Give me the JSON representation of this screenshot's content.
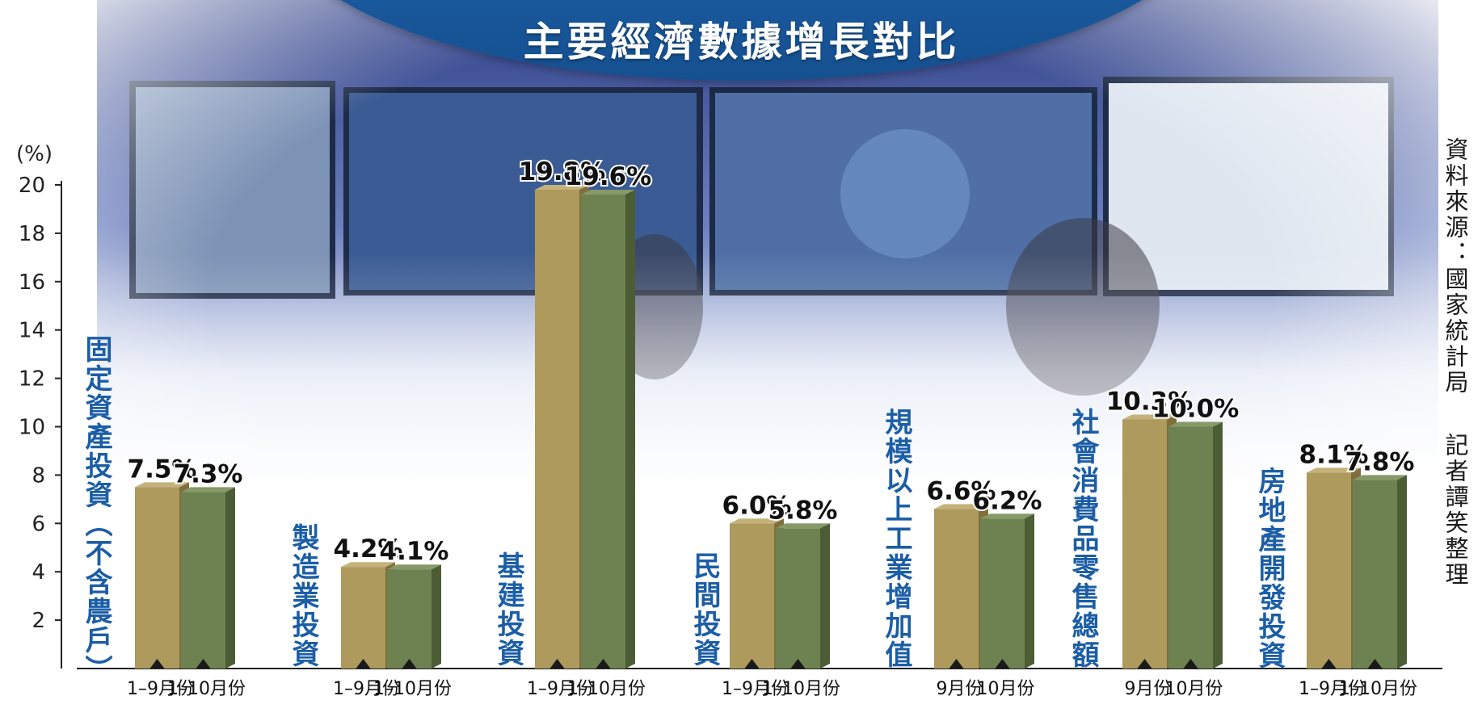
{
  "chart_data": {
    "type": "bar",
    "title": "主要經濟數據增長對比",
    "ylabel": "(%)",
    "ylim": [
      0,
      20
    ],
    "yticks": [
      2,
      4,
      6,
      8,
      10,
      12,
      14,
      16,
      18,
      20
    ],
    "grid": false,
    "bar_colors": [
      "#ad9a5c",
      "#6e8251"
    ],
    "groups": [
      {
        "label": "固定資產投資（不含農戶）",
        "categories": [
          "1–9月份",
          "1–10月份"
        ],
        "values": [
          7.5,
          7.3
        ],
        "value_labels": [
          "7.5%",
          "7.3%"
        ]
      },
      {
        "label": "製造業投資",
        "categories": [
          "1–9月份",
          "1–10月份"
        ],
        "values": [
          4.2,
          4.1
        ],
        "value_labels": [
          "4.2%",
          "4.1%"
        ]
      },
      {
        "label": "基建投資",
        "categories": [
          "1–9月份",
          "1–10月份"
        ],
        "values": [
          19.8,
          19.6
        ],
        "value_labels": [
          "19.8%",
          "19.6%"
        ]
      },
      {
        "label": "民間投資",
        "categories": [
          "1–9月份",
          "1–10月份"
        ],
        "values": [
          6.0,
          5.8
        ],
        "value_labels": [
          "6.0%",
          "5.8%"
        ]
      },
      {
        "label": "規模以上工業增加值",
        "categories": [
          "9月份",
          "10月份"
        ],
        "values": [
          6.6,
          6.2
        ],
        "value_labels": [
          "6.6%",
          "6.2%"
        ]
      },
      {
        "label": "社會消費品零售總額",
        "categories": [
          "9月份",
          "10月份"
        ],
        "values": [
          10.3,
          10.0
        ],
        "value_labels": [
          "10.3%",
          "10.0%"
        ]
      },
      {
        "label": "房地產開發投資",
        "categories": [
          "1–9月份",
          "1–10月份"
        ],
        "values": [
          8.1,
          7.8
        ],
        "value_labels": [
          "8.1%",
          "7.8%"
        ]
      }
    ]
  },
  "source": "資料來源：國家統計局",
  "credit": "記者譚笑整理"
}
